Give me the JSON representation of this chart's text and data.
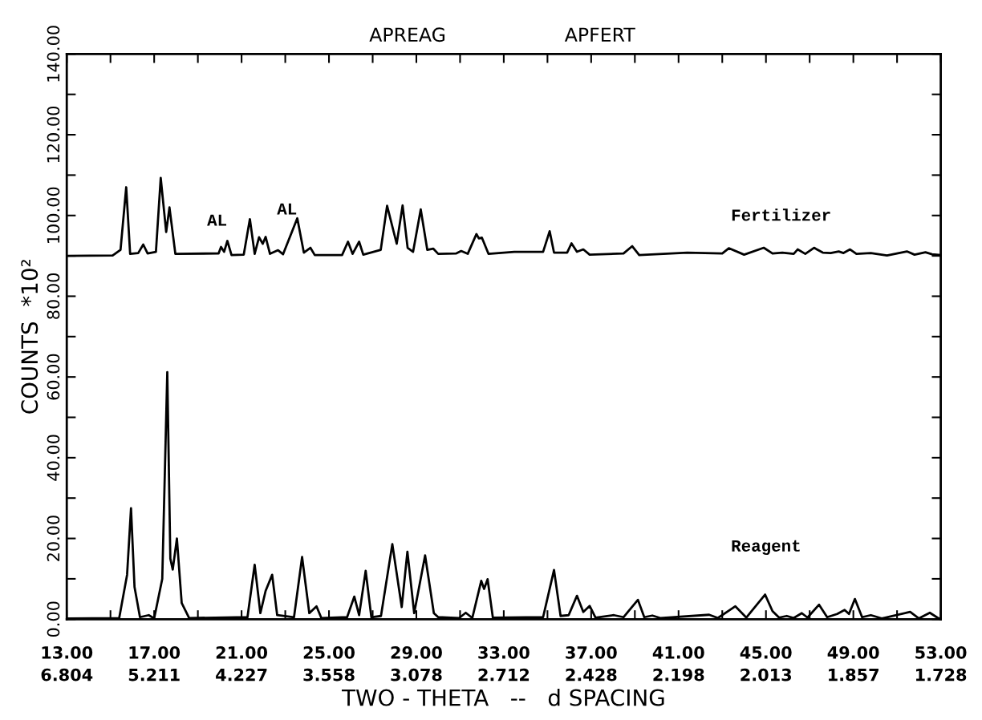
{
  "chart_data": {
    "type": "line",
    "xlabel": "TWO - THETA   --   d SPACING",
    "ylabel": "COUNTS  *10²",
    "annotations": [
      "APREAG",
      "APFERT",
      "AL",
      "AL",
      "6.804",
      "5.211",
      "4.227",
      "3.558",
      "3.078",
      "2.712",
      "2.428",
      "2.198",
      "2.013",
      "1.857",
      "1.728"
    ],
    "xlim": [
      13,
      53
    ],
    "xticks": [
      {
        "value": 13,
        "label": "13.00"
      },
      {
        "value": 15,
        "label": null
      },
      {
        "value": 17,
        "label": "17.00"
      },
      {
        "value": 19,
        "label": null
      },
      {
        "value": 21,
        "label": "21.00"
      },
      {
        "value": 23,
        "label": null
      },
      {
        "value": 25,
        "label": "25.00"
      },
      {
        "value": 27,
        "label": null
      },
      {
        "value": 29,
        "label": "29.00"
      },
      {
        "value": 31,
        "label": null
      },
      {
        "value": 33,
        "label": "33.00"
      },
      {
        "value": 35,
        "label": null
      },
      {
        "value": 37,
        "label": "37.00"
      },
      {
        "value": 39,
        "label": null
      },
      {
        "value": 41,
        "label": "41.00"
      },
      {
        "value": 43,
        "label": null
      },
      {
        "value": 45,
        "label": "45.00"
      },
      {
        "value": 47,
        "label": null
      },
      {
        "value": 49,
        "label": "49.00"
      },
      {
        "value": 51,
        "label": null
      },
      {
        "value": 53,
        "label": "53.00"
      }
    ],
    "ylim": [
      0,
      140
    ],
    "yticks": [
      {
        "value": 0,
        "label": "0.00"
      },
      {
        "value": 10,
        "label": null
      },
      {
        "value": 20,
        "label": "20.00"
      },
      {
        "value": 30,
        "label": null
      },
      {
        "value": 40,
        "label": "40.00"
      },
      {
        "value": 50,
        "label": null
      },
      {
        "value": 60,
        "label": "60.00"
      },
      {
        "value": 70,
        "label": null
      },
      {
        "value": 80,
        "label": "80.00"
      },
      {
        "value": 90,
        "label": null
      },
      {
        "value": 100,
        "label": "100.00"
      },
      {
        "value": 110,
        "label": null
      },
      {
        "value": 120,
        "label": "120.00"
      },
      {
        "value": 130,
        "label": null
      },
      {
        "value": 140,
        "label": "140.00"
      }
    ],
    "grid": false,
    "legend": false,
    "marker": "none",
    "line_style": "solid",
    "series": [
      {
        "name": "Fertilizer",
        "color": "#000000",
        "x": [
          13.0,
          15.1,
          15.46,
          15.72,
          15.9,
          16.27,
          16.5,
          16.7,
          17.08,
          17.3,
          17.55,
          17.7,
          17.97,
          19.95,
          20.06,
          20.2,
          20.35,
          20.54,
          21.1,
          21.38,
          21.6,
          21.8,
          21.97,
          22.1,
          22.3,
          22.67,
          22.9,
          23.55,
          23.85,
          24.15,
          24.35,
          25.6,
          25.87,
          26.08,
          26.38,
          26.57,
          27.37,
          27.66,
          28.1,
          28.37,
          28.6,
          28.85,
          29.2,
          29.5,
          29.77,
          30.0,
          30.83,
          31.05,
          31.35,
          31.75,
          31.86,
          32.0,
          32.3,
          33.48,
          34.8,
          35.1,
          35.3,
          35.9,
          36.1,
          36.35,
          36.64,
          36.93,
          38.48,
          38.88,
          39.2,
          41.4,
          43.0,
          43.3,
          44.0,
          44.9,
          45.3,
          45.75,
          46.27,
          46.45,
          46.8,
          47.2,
          47.6,
          47.96,
          48.33,
          48.55,
          48.85,
          49.14,
          49.8,
          50.54,
          51.45,
          51.8,
          52.3,
          52.6,
          53.0
        ],
        "values": [
          90,
          90.1,
          91.5,
          107,
          90.5,
          90.7,
          92.8,
          90.6,
          91,
          109.3,
          95.9,
          102,
          90.5,
          90.6,
          92.2,
          91,
          93.7,
          90.2,
          90.3,
          99.1,
          90.5,
          94.6,
          93,
          94.7,
          90.5,
          91.4,
          90.4,
          99.3,
          90.8,
          92,
          90.2,
          90.2,
          93.5,
          90.5,
          93.5,
          90.3,
          91.5,
          102.4,
          93,
          102.5,
          92,
          91,
          101.5,
          91.5,
          91.8,
          90.5,
          90.6,
          91.2,
          90.5,
          95.4,
          94.3,
          94.5,
          90.5,
          91,
          91,
          96.1,
          90.8,
          90.8,
          93.1,
          91,
          91.6,
          90.3,
          90.6,
          92.4,
          90.2,
          90.8,
          90.6,
          91.9,
          90.3,
          92,
          90.6,
          90.8,
          90.5,
          91.6,
          90.5,
          92,
          90.8,
          90.7,
          91.1,
          90.7,
          91.6,
          90.5,
          90.7,
          90.1,
          91.1,
          90.3,
          90.9,
          90.4,
          90.2
        ]
      },
      {
        "name": "Reagent",
        "color": "#000000",
        "x": [
          13.0,
          15.4,
          15.76,
          15.94,
          16.1,
          16.35,
          16.75,
          17.0,
          17.37,
          17.6,
          17.74,
          17.85,
          18.04,
          18.26,
          18.6,
          21.27,
          21.6,
          21.86,
          22.1,
          22.4,
          22.63,
          23.4,
          23.77,
          24.1,
          24.43,
          24.65,
          25.83,
          26.16,
          26.38,
          26.68,
          26.94,
          27.38,
          27.9,
          28.33,
          28.59,
          28.9,
          29.4,
          29.8,
          30.0,
          30.96,
          31.26,
          31.56,
          31.97,
          32.1,
          32.26,
          32.5,
          34.8,
          35.3,
          35.6,
          35.97,
          36.35,
          36.64,
          36.93,
          37.2,
          38.04,
          38.48,
          39.14,
          39.43,
          39.8,
          40.16,
          42.4,
          42.8,
          43.6,
          44.1,
          44.96,
          45.3,
          45.6,
          45.95,
          46.27,
          46.64,
          46.9,
          47.43,
          47.8,
          48.26,
          48.6,
          48.8,
          49.07,
          49.4,
          49.8,
          50.3,
          51.6,
          52.0,
          52.5,
          52.9,
          53.0
        ],
        "values": [
          0.2,
          0.3,
          11,
          27.5,
          8,
          0.5,
          1,
          0.2,
          10,
          61.2,
          15,
          12.3,
          20,
          4,
          0.3,
          0.5,
          13.5,
          1.5,
          7,
          11,
          1,
          0.5,
          15.4,
          1.5,
          3.2,
          0.3,
          0.5,
          5.6,
          1,
          12,
          0.5,
          0.8,
          18.6,
          3,
          16.7,
          1.5,
          15.8,
          1.5,
          0.5,
          0.3,
          1.6,
          0.3,
          9.5,
          7.5,
          9.9,
          0.4,
          0.5,
          12.2,
          0.8,
          1,
          5.8,
          1.8,
          3.3,
          0.4,
          1,
          0.5,
          4.8,
          0.5,
          0.9,
          0.3,
          1.1,
          0.3,
          3.2,
          0.4,
          6.1,
          2,
          0.4,
          0.8,
          0.3,
          1.5,
          0.4,
          3.6,
          0.5,
          1.3,
          2.3,
          1.3,
          5,
          0.5,
          1,
          0.2,
          1.8,
          0.2,
          1.6,
          0.2,
          0.2
        ]
      }
    ]
  }
}
